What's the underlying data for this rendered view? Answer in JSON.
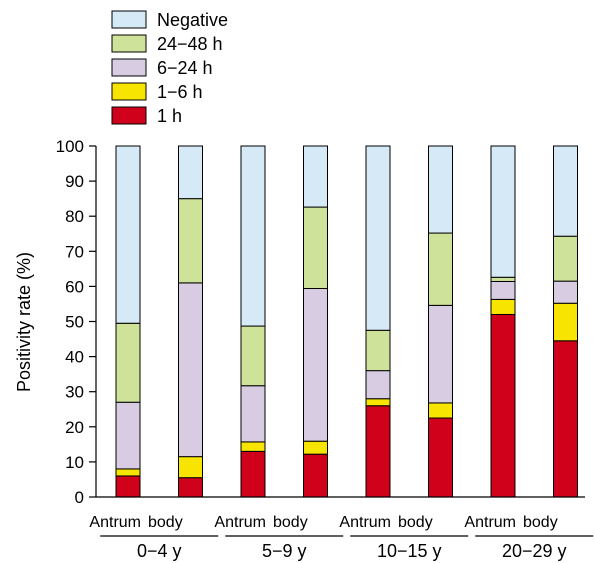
{
  "chart_data": {
    "type": "bar",
    "stacked": true,
    "ylabel": "Positivity rate (%)",
    "ylim": [
      0,
      100
    ],
    "yticks": [
      0,
      10,
      20,
      30,
      40,
      50,
      60,
      70,
      80,
      90,
      100
    ],
    "groups": [
      {
        "label": "0−4 y",
        "categories": [
          "Antrum",
          "body"
        ]
      },
      {
        "label": "5−9 y",
        "categories": [
          "Antrum",
          "body"
        ]
      },
      {
        "label": "10−15 y",
        "categories": [
          "Antrum",
          "body"
        ]
      },
      {
        "label": "20−29 y",
        "categories": [
          "Antrum",
          "body"
        ]
      }
    ],
    "series": [
      {
        "name": "1 h",
        "color": "#d0021b",
        "values": [
          6,
          5.5,
          13,
          12.2,
          26,
          22.5,
          52,
          44.5
        ]
      },
      {
        "name": "1−6 h",
        "color": "#f7e400",
        "values": [
          2,
          6,
          2.7,
          3.7,
          2,
          4.3,
          4.3,
          10.7
        ]
      },
      {
        "name": "6−24 h",
        "color": "#d8cce3",
        "values": [
          19,
          49.5,
          16,
          43.5,
          8,
          27.8,
          5.1,
          6.3
        ]
      },
      {
        "name": "24−48 h",
        "color": "#cfe29a",
        "values": [
          22.5,
          24,
          17,
          23.2,
          11.5,
          20.6,
          1.2,
          12.8
        ]
      },
      {
        "name": "Negative",
        "color": "#d5e9f6",
        "values": [
          50.5,
          15,
          51.3,
          17.4,
          52.5,
          24.8,
          37.4,
          25.7
        ]
      }
    ],
    "legend_order": [
      "Negative",
      "24−48 h",
      "6−24 h",
      "1−6 h",
      "1 h"
    ],
    "legend_position": "top-left",
    "grid": false
  }
}
